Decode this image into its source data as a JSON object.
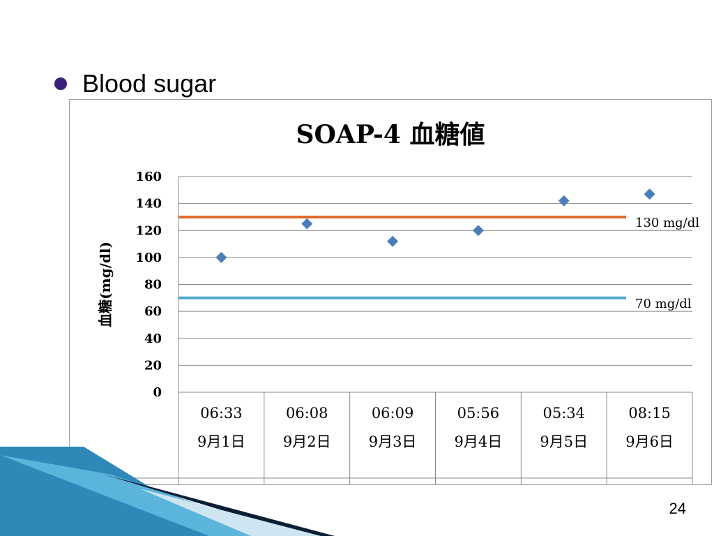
{
  "slide": {
    "bullet_text": "Blood sugar",
    "page_number": "24"
  },
  "chart_data": {
    "type": "scatter",
    "title": "SOAP-4 血糖値",
    "ylabel": "血糖(mg/dl)",
    "ylim": [
      0,
      160
    ],
    "yticks": [
      0,
      20,
      40,
      60,
      80,
      100,
      120,
      140,
      160
    ],
    "grid": true,
    "categories": [
      {
        "time": "06:33",
        "date": "9月1日"
      },
      {
        "time": "06:08",
        "date": "9月2日"
      },
      {
        "time": "06:09",
        "date": "9月3日"
      },
      {
        "time": "05:56",
        "date": "9月4日"
      },
      {
        "time": "05:34",
        "date": "9月5日"
      },
      {
        "time": "08:15",
        "date": "9月6日"
      }
    ],
    "series": [
      {
        "name": "血糖値",
        "marker": "diamond",
        "color": "#4a7ebb",
        "values": [
          100,
          125,
          112,
          120,
          142,
          147
        ]
      }
    ],
    "reference_lines": [
      {
        "value": 130,
        "label": "130 mg/dl",
        "color": "#e06a2c"
      },
      {
        "value": 70,
        "label": "70 mg/dl",
        "color": "#4aa8c8"
      }
    ],
    "data_table": true
  }
}
